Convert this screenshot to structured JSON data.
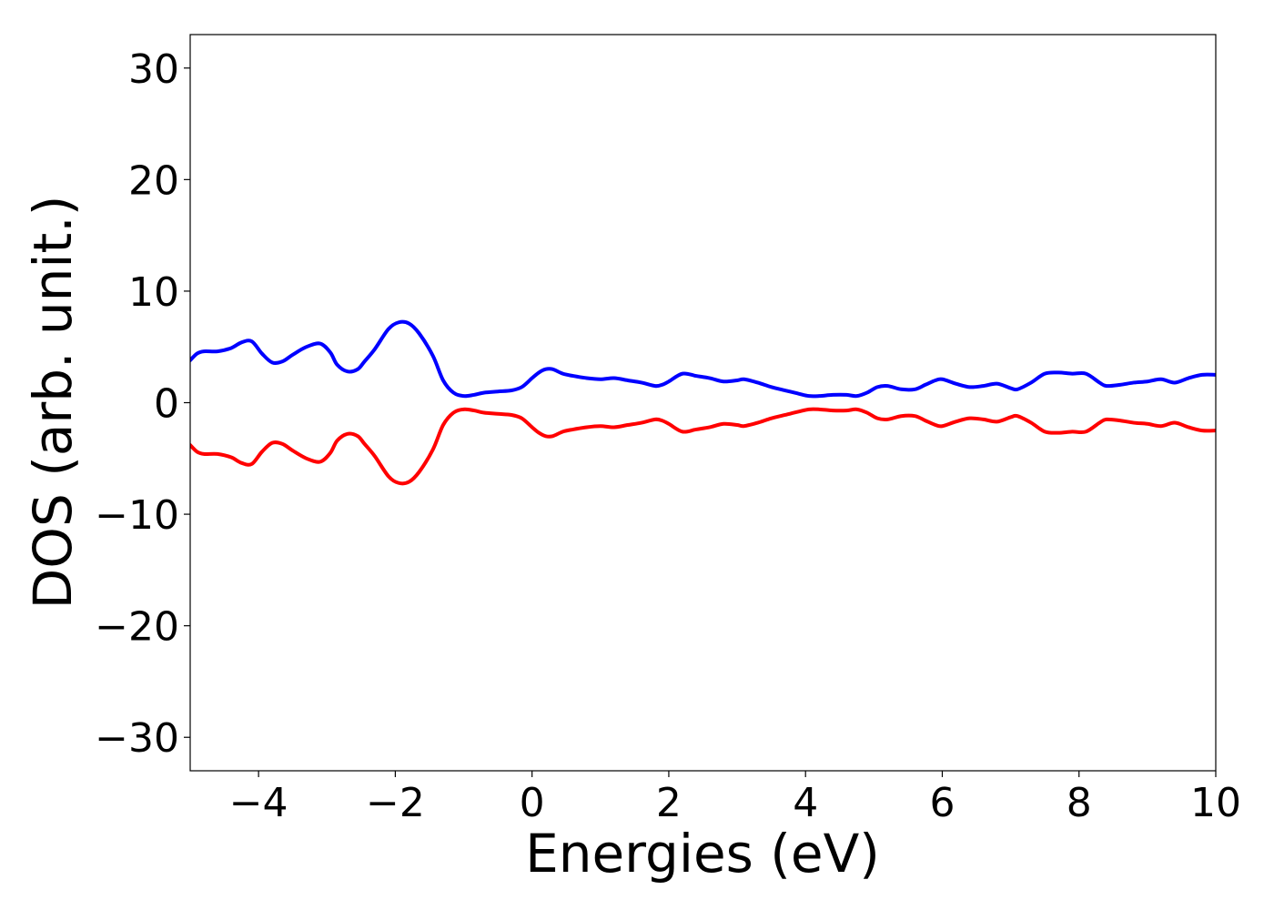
{
  "chart_data": {
    "type": "line",
    "title": "",
    "xlabel": "Energies (eV)",
    "ylabel": "DOS (arb. unit.)",
    "xlim": [
      -5,
      10
    ],
    "ylim": [
      -33,
      33
    ],
    "xticks": [
      -4,
      -2,
      0,
      2,
      4,
      6,
      8,
      10
    ],
    "yticks": [
      -30,
      -20,
      -10,
      0,
      10,
      20,
      30
    ],
    "xtick_labels": [
      "−4",
      "−2",
      "0",
      "2",
      "4",
      "6",
      "8",
      "10"
    ],
    "ytick_labels": [
      "−30",
      "−20",
      "−10",
      "0",
      "10",
      "20",
      "30"
    ],
    "grid": false,
    "legend": "none",
    "series": [
      {
        "color": "#0000ff",
        "x": [
          -5.0,
          -4.9,
          -4.8,
          -4.6,
          -4.4,
          -4.25,
          -4.1,
          -3.95,
          -3.8,
          -3.65,
          -3.5,
          -3.3,
          -3.1,
          -2.95,
          -2.85,
          -2.7,
          -2.55,
          -2.45,
          -2.3,
          -2.1,
          -1.95,
          -1.8,
          -1.65,
          -1.45,
          -1.3,
          -1.15,
          -1.0,
          -0.85,
          -0.7,
          -0.5,
          -0.3,
          -0.15,
          0.0,
          0.1,
          0.2,
          0.3,
          0.45,
          0.6,
          0.8,
          1.0,
          1.2,
          1.4,
          1.6,
          1.8,
          1.9,
          2.0,
          2.2,
          2.4,
          2.6,
          2.8,
          3.0,
          3.1,
          3.3,
          3.5,
          3.7,
          3.9,
          4.05,
          4.2,
          4.4,
          4.6,
          4.75,
          4.9,
          5.05,
          5.2,
          5.4,
          5.6,
          5.75,
          5.9,
          6.0,
          6.2,
          6.4,
          6.6,
          6.8,
          7.0,
          7.1,
          7.3,
          7.5,
          7.7,
          7.9,
          8.1,
          8.3,
          8.4,
          8.6,
          8.8,
          9.0,
          9.2,
          9.4,
          9.6,
          9.8,
          10.0
        ],
        "y": [
          3.8,
          4.4,
          4.6,
          4.6,
          4.9,
          5.4,
          5.5,
          4.4,
          3.6,
          3.7,
          4.3,
          5.0,
          5.3,
          4.5,
          3.4,
          2.8,
          3.0,
          3.7,
          4.8,
          6.6,
          7.2,
          7.1,
          6.2,
          4.2,
          2.0,
          0.9,
          0.6,
          0.7,
          0.9,
          1.0,
          1.1,
          1.4,
          2.2,
          2.7,
          3.0,
          3.0,
          2.6,
          2.4,
          2.2,
          2.1,
          2.2,
          2.0,
          1.8,
          1.5,
          1.6,
          1.9,
          2.6,
          2.4,
          2.2,
          1.9,
          2.0,
          2.1,
          1.8,
          1.4,
          1.1,
          0.8,
          0.6,
          0.6,
          0.7,
          0.7,
          0.6,
          0.9,
          1.4,
          1.5,
          1.2,
          1.2,
          1.6,
          2.0,
          2.1,
          1.7,
          1.4,
          1.5,
          1.7,
          1.3,
          1.2,
          1.8,
          2.6,
          2.7,
          2.6,
          2.6,
          1.8,
          1.5,
          1.6,
          1.8,
          1.9,
          2.1,
          1.8,
          2.2,
          2.5,
          2.5
        ]
      },
      {
        "color": "#ff0000",
        "x": [
          -5.0,
          -4.9,
          -4.8,
          -4.6,
          -4.4,
          -4.25,
          -4.1,
          -3.95,
          -3.8,
          -3.65,
          -3.5,
          -3.3,
          -3.1,
          -2.95,
          -2.85,
          -2.7,
          -2.55,
          -2.45,
          -2.3,
          -2.1,
          -1.95,
          -1.8,
          -1.65,
          -1.45,
          -1.3,
          -1.15,
          -1.0,
          -0.85,
          -0.7,
          -0.5,
          -0.3,
          -0.15,
          0.0,
          0.1,
          0.2,
          0.3,
          0.45,
          0.6,
          0.8,
          1.0,
          1.2,
          1.4,
          1.6,
          1.8,
          1.9,
          2.0,
          2.2,
          2.4,
          2.6,
          2.8,
          3.0,
          3.1,
          3.3,
          3.5,
          3.7,
          3.9,
          4.05,
          4.2,
          4.4,
          4.6,
          4.75,
          4.9,
          5.05,
          5.2,
          5.4,
          5.6,
          5.75,
          5.9,
          6.0,
          6.2,
          6.4,
          6.6,
          6.8,
          7.0,
          7.1,
          7.3,
          7.5,
          7.7,
          7.9,
          8.1,
          8.3,
          8.4,
          8.6,
          8.8,
          9.0,
          9.2,
          9.4,
          9.6,
          9.8,
          10.0
        ],
        "y": [
          -3.8,
          -4.4,
          -4.6,
          -4.6,
          -4.9,
          -5.4,
          -5.5,
          -4.4,
          -3.6,
          -3.7,
          -4.3,
          -5.0,
          -5.3,
          -4.5,
          -3.4,
          -2.8,
          -3.0,
          -3.7,
          -4.8,
          -6.6,
          -7.2,
          -7.1,
          -6.2,
          -4.2,
          -2.0,
          -0.9,
          -0.6,
          -0.7,
          -0.9,
          -1.0,
          -1.1,
          -1.4,
          -2.2,
          -2.7,
          -3.0,
          -3.0,
          -2.6,
          -2.4,
          -2.2,
          -2.1,
          -2.2,
          -2.0,
          -1.8,
          -1.5,
          -1.6,
          -1.9,
          -2.6,
          -2.4,
          -2.2,
          -1.9,
          -2.0,
          -2.1,
          -1.8,
          -1.4,
          -1.1,
          -0.8,
          -0.6,
          -0.6,
          -0.7,
          -0.7,
          -0.6,
          -0.9,
          -1.4,
          -1.5,
          -1.2,
          -1.2,
          -1.6,
          -2.0,
          -2.1,
          -1.7,
          -1.4,
          -1.5,
          -1.7,
          -1.3,
          -1.2,
          -1.8,
          -2.6,
          -2.7,
          -2.6,
          -2.6,
          -1.8,
          -1.5,
          -1.6,
          -1.8,
          -1.9,
          -2.1,
          -1.8,
          -2.2,
          -2.5,
          -2.5
        ]
      }
    ]
  }
}
